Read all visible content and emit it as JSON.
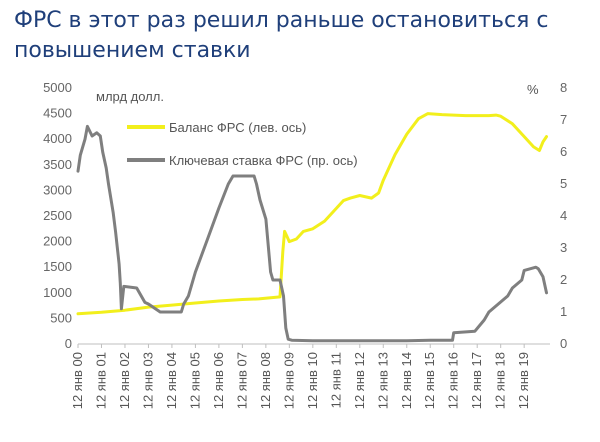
{
  "chart_data": {
    "type": "line",
    "title": "ФРС в этот раз решил раньше остановиться с повышением ставки",
    "left_axis": {
      "unit": "млрд долл.",
      "min": 0,
      "max": 5000,
      "ticks": [
        0,
        500,
        1000,
        1500,
        2000,
        2500,
        3000,
        3500,
        4000,
        4500,
        5000
      ]
    },
    "right_axis": {
      "unit": "%",
      "min": 0,
      "max": 8,
      "ticks": [
        0,
        1,
        2,
        3,
        4,
        5,
        6,
        7,
        8
      ]
    },
    "x_axis": {
      "min": 2000.0,
      "max": 2020.1,
      "tick_labels": [
        "12 янв 00",
        "12 янв 01",
        "12 янв 02",
        "12 янв 03",
        "12 янв 04",
        "12 янв 05",
        "12 янв 06",
        "12 янв 07",
        "12 янв 08",
        "12 янв 09",
        "12 янв 10",
        "12 янв 11",
        "12 янв 12",
        "12 янв 13",
        "12 янв 14",
        "12 янв 15",
        "12 янв 16",
        "12 янв 17",
        "12 янв 18",
        "12 янв 19"
      ]
    },
    "series": [
      {
        "name": "Баланс ФРС (лев. ось)",
        "axis": "left",
        "color": "#f2ef1c",
        "x": [
          2000.0,
          2001.0,
          2002.0,
          2003.0,
          2004.0,
          2005.0,
          2006.0,
          2007.0,
          2007.7,
          2008.6,
          2008.72,
          2008.8,
          2008.9,
          2009.0,
          2009.3,
          2009.6,
          2010.0,
          2010.5,
          2010.9,
          2011.3,
          2011.6,
          2012.0,
          2012.5,
          2012.8,
          2013.0,
          2013.5,
          2014.0,
          2014.5,
          2014.9,
          2015.5,
          2016.0,
          2016.5,
          2017.0,
          2017.5,
          2017.8,
          2018.0,
          2018.5,
          2019.0,
          2019.4,
          2019.65,
          2019.8,
          2019.95
        ],
        "y": [
          590,
          620,
          660,
          720,
          760,
          800,
          840,
          870,
          880,
          920,
          1800,
          2200,
          2100,
          2000,
          2050,
          2200,
          2250,
          2400,
          2600,
          2800,
          2850,
          2900,
          2850,
          2950,
          3200,
          3700,
          4100,
          4400,
          4500,
          4480,
          4470,
          4460,
          4460,
          4460,
          4470,
          4450,
          4300,
          4050,
          3850,
          3780,
          3950,
          4050
        ]
      },
      {
        "name": "Ключевая ставка ФРС (пр. ось)",
        "axis": "right",
        "color": "#7f7f7f",
        "x": [
          2000.0,
          2000.1,
          2000.3,
          2000.4,
          2000.6,
          2000.8,
          2000.95,
          2001.05,
          2001.2,
          2001.3,
          2001.5,
          2001.6,
          2001.75,
          2001.8,
          2001.85,
          2001.95,
          2002.5,
          2002.85,
          2003.0,
          2003.5,
          2003.9,
          2004.4,
          2004.5,
          2004.7,
          2005.0,
          2005.5,
          2006.0,
          2006.4,
          2006.6,
          2007.5,
          2007.6,
          2007.75,
          2008.0,
          2008.2,
          2008.3,
          2008.6,
          2008.75,
          2008.85,
          2008.95,
          2009.1,
          2010.0,
          2011.0,
          2012.0,
          2013.0,
          2014.0,
          2015.0,
          2015.95,
          2016.0,
          2016.9,
          2017.3,
          2017.5,
          2017.9,
          2018.3,
          2018.5,
          2018.9,
          2019.0,
          2019.5,
          2019.6,
          2019.8,
          2019.95
        ],
        "y": [
          5.4,
          5.9,
          6.4,
          6.8,
          6.5,
          6.6,
          6.5,
          6.0,
          5.5,
          5.0,
          4.1,
          3.5,
          2.5,
          1.9,
          1.1,
          1.8,
          1.75,
          1.3,
          1.25,
          1.0,
          1.0,
          1.0,
          1.25,
          1.5,
          2.25,
          3.25,
          4.25,
          5.0,
          5.25,
          5.25,
          5.0,
          4.5,
          3.9,
          2.25,
          2.0,
          2.0,
          1.5,
          0.5,
          0.15,
          0.12,
          0.1,
          0.1,
          0.1,
          0.1,
          0.1,
          0.12,
          0.12,
          0.35,
          0.4,
          0.75,
          1.0,
          1.25,
          1.5,
          1.75,
          2.0,
          2.3,
          2.4,
          2.35,
          2.1,
          1.6
        ]
      }
    ],
    "legend_placement": "top-left inside plot",
    "grid": false
  }
}
